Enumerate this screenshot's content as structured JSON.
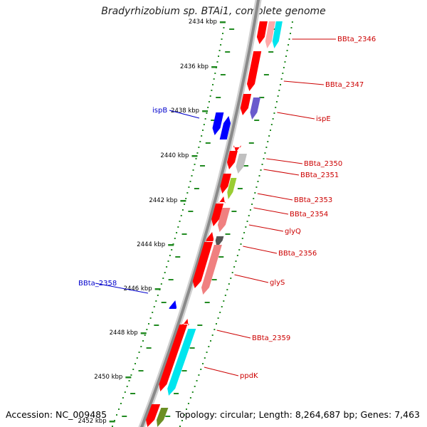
{
  "title": "Bradyrhizobium sp. BTAi1, complete genome",
  "footer": {
    "accession": "Accession: NC_009485",
    "topology": "Topology: circular; Length: 8,264,687 bp; Genes: 7,463"
  },
  "colors": {
    "backbone": "#8a8a8a",
    "tick": "#228b22",
    "reverse_label": "#0000cc",
    "forward_label": "#cc0000"
  },
  "scale_labels": [
    "2434 kbp",
    "2436 kbp",
    "2438 kbp",
    "2440 kbp",
    "2442 kbp",
    "2444 kbp",
    "2446 kbp",
    "2448 kbp",
    "2450 kbp",
    "2452 kbp"
  ],
  "gene_labels_forward": [
    "BBta_2346",
    "BBta_2347",
    "ispE",
    "BBta_2350",
    "BBta_2351",
    "BBta_2353",
    "BBta_2354",
    "glyQ",
    "BBta_2356",
    "glyS",
    "BBta_2359",
    "ppdK"
  ],
  "gene_labels_reverse": [
    "ispB",
    "BBta_2358"
  ],
  "gene_colors": [
    "#ff0000",
    "#ffaaaa",
    "#00e5ee",
    "#6a5acd",
    "#c0c0c0",
    "#9acd32",
    "#f08080",
    "#555555",
    "#0000ff",
    "#6b8e23"
  ]
}
